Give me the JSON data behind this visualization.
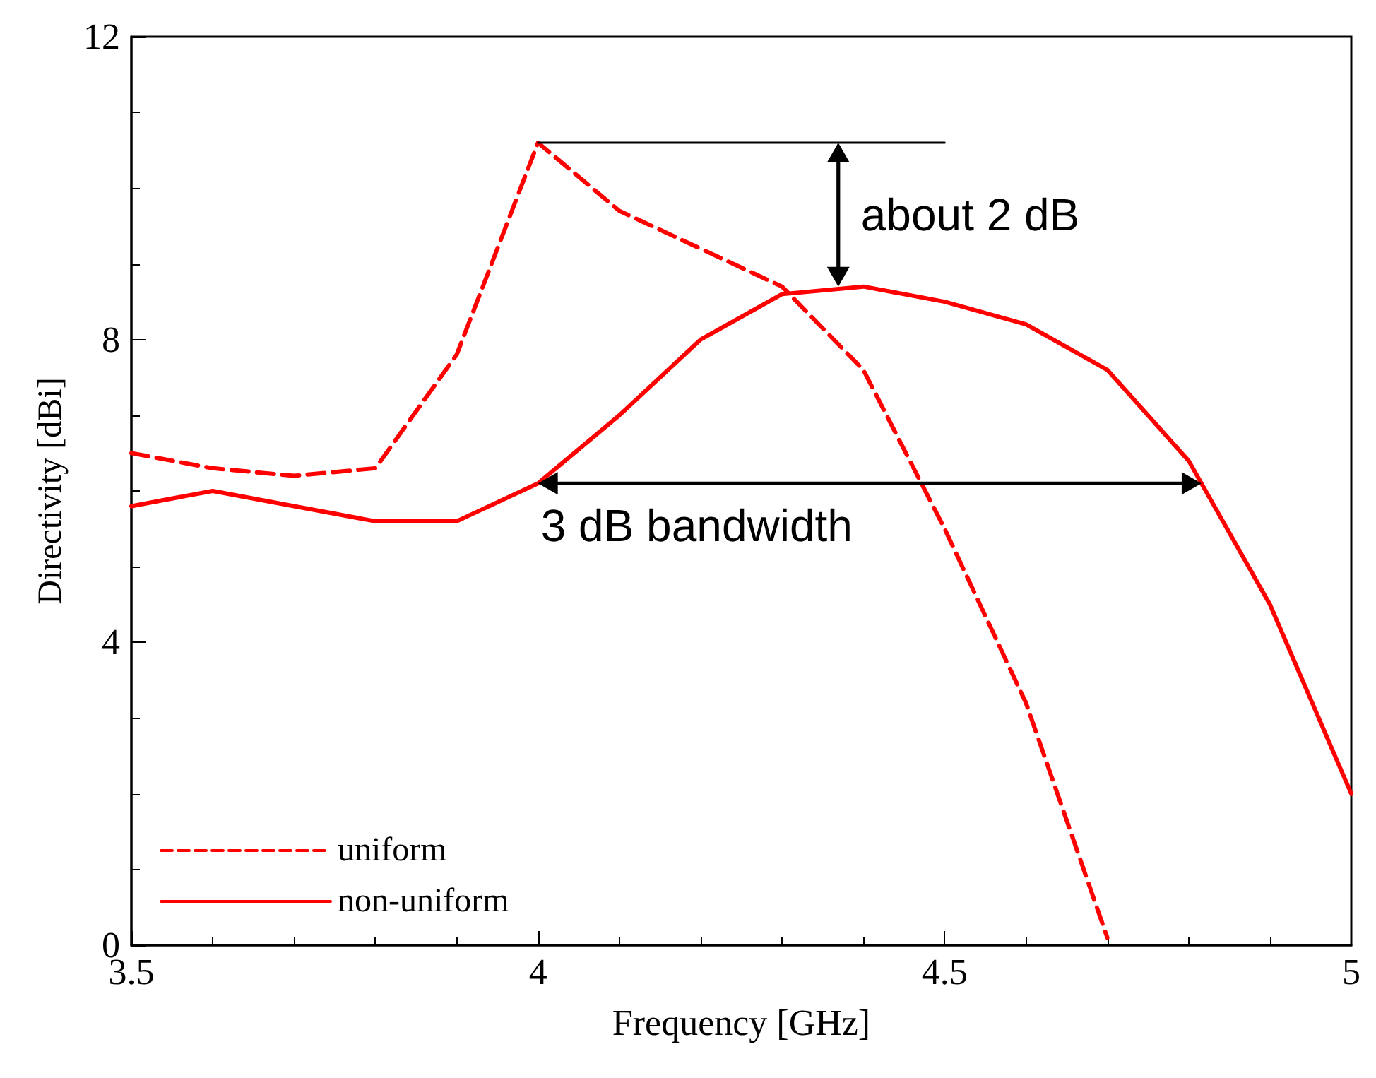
{
  "chart_data": {
    "type": "line",
    "xlabel": "Frequency [GHz]",
    "ylabel": "Directivity [dBi]",
    "x": [
      3.5,
      3.6,
      3.7,
      3.8,
      3.9,
      4.0,
      4.1,
      4.2,
      4.3,
      4.4,
      4.5,
      4.6,
      4.7,
      4.8,
      4.9,
      5.0
    ],
    "series": [
      {
        "name": "uniform",
        "color": "#ff0000",
        "line_style": "dashed",
        "x": [
          3.5,
          3.6,
          3.7,
          3.8,
          3.9,
          4.0,
          4.1,
          4.2,
          4.3,
          4.4,
          4.5,
          4.6,
          4.7
        ],
        "values": [
          6.5,
          6.3,
          6.2,
          6.3,
          7.8,
          10.6,
          9.7,
          9.2,
          8.7,
          7.6,
          5.5,
          3.2,
          0.1
        ]
      },
      {
        "name": "non-uniform",
        "color": "#ff0000",
        "line_style": "solid",
        "values": [
          5.8,
          6.0,
          5.8,
          5.6,
          5.6,
          6.1,
          7.0,
          8.0,
          8.6,
          8.7,
          8.5,
          8.2,
          7.6,
          6.4,
          4.5,
          2.0
        ]
      },
      {
        "color": "#000000",
        "line_style": "solid",
        "x": [
          4.0,
          4.5
        ],
        "values": [
          10.6,
          10.6
        ]
      }
    ],
    "xlim": [
      3.5,
      5
    ],
    "xticks": [
      3.5,
      4,
      4.5,
      5
    ],
    "ylim": [
      0,
      12
    ],
    "yticks": [
      0,
      4,
      8,
      12
    ],
    "grid": false,
    "legend": "bottom left",
    "marker": "none",
    "annotations": [
      "about 2 dB",
      "3 dB bandwidth"
    ]
  }
}
